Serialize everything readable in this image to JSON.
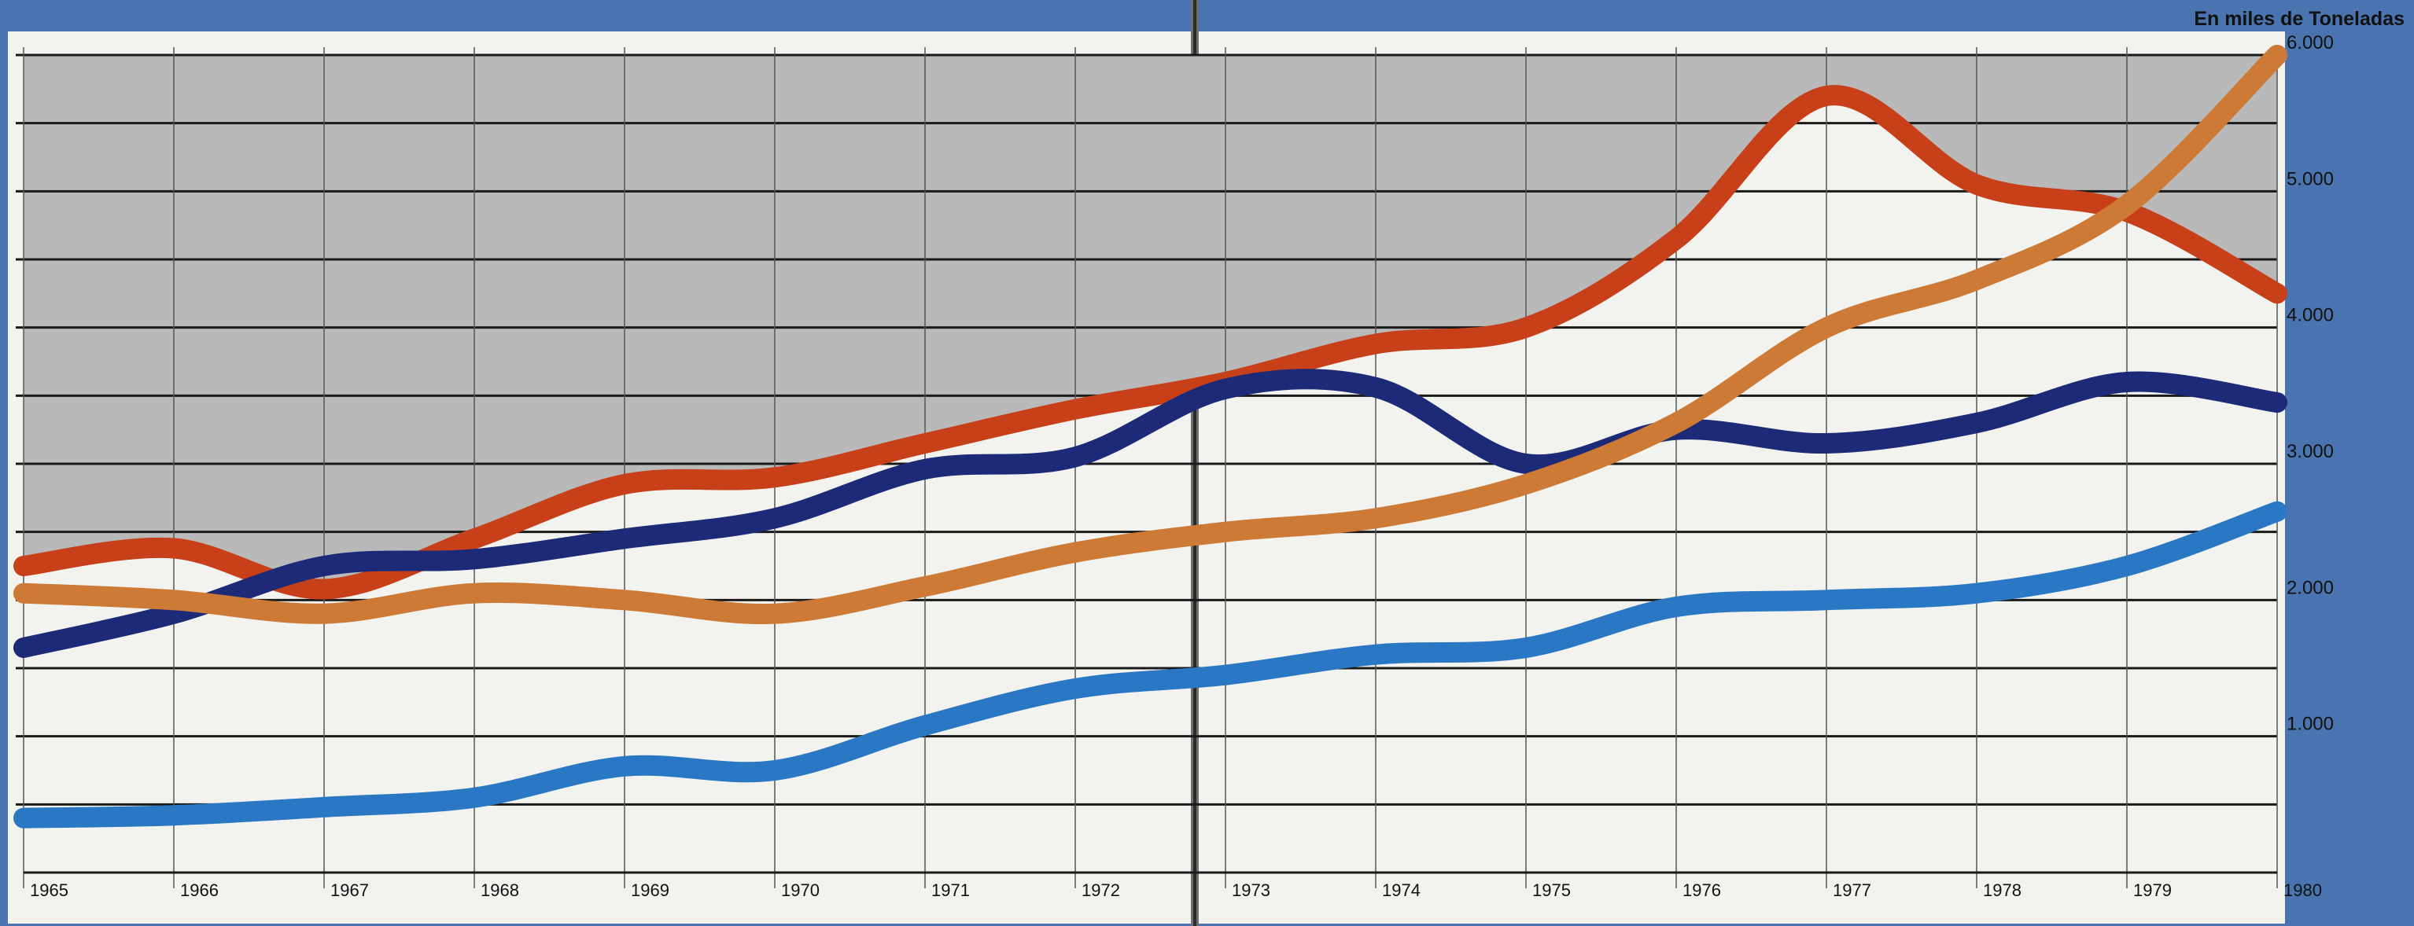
{
  "colors": {
    "background": "#4a74b0",
    "paper": "#f2f2ef",
    "shaded_band": "#b9b9b9",
    "grid_line": "#1a1a1a",
    "series_red": "#c8401a",
    "series_navy": "#1c2a78",
    "series_orange": "#cc7a35",
    "series_blue": "#2a78c4"
  },
  "chart_data": {
    "type": "line",
    "title": "",
    "unit_label": "En miles de Toneladas",
    "xlabel": "",
    "ylabel": "",
    "xlim": [
      1965,
      1980
    ],
    "ylim": [
      0,
      6000
    ],
    "x_ticks": [
      1965,
      1966,
      1967,
      1968,
      1969,
      1970,
      1971,
      1972,
      1973,
      1974,
      1975,
      1976,
      1977,
      1978,
      1979,
      1980
    ],
    "y_ticks": [
      1000,
      2000,
      3000,
      4000,
      5000,
      6000
    ],
    "y_tick_labels": [
      "1.000",
      "2.000",
      "3.000",
      "4.000",
      "5.000",
      "6.000"
    ],
    "grid": true,
    "legend": "none",
    "series": [
      {
        "color": "#c8401a",
        "x": [
          1965,
          1966,
          1967,
          1968,
          1969,
          1970,
          1971,
          1972,
          1973,
          1974,
          1975,
          1976,
          1977,
          1978,
          1979,
          1980
        ],
        "values": [
          2250,
          2380,
          2080,
          2450,
          2850,
          2900,
          3150,
          3400,
          3600,
          3880,
          4000,
          4650,
          5700,
          5050,
          4850,
          4250
        ]
      },
      {
        "color": "#1c2a78",
        "x": [
          1965,
          1966,
          1967,
          1968,
          1969,
          1970,
          1971,
          1972,
          1973,
          1974,
          1975,
          1976,
          1977,
          1978,
          1979,
          1980
        ],
        "values": [
          1650,
          1900,
          2250,
          2300,
          2450,
          2600,
          2960,
          3050,
          3550,
          3560,
          3000,
          3250,
          3150,
          3300,
          3600,
          3450
        ]
      },
      {
        "color": "#cc7a35",
        "x": [
          1965,
          1966,
          1967,
          1968,
          1969,
          1970,
          1971,
          1972,
          1973,
          1974,
          1975,
          1976,
          1977,
          1978,
          1979,
          1980
        ],
        "values": [
          2050,
          2000,
          1900,
          2050,
          2000,
          1900,
          2100,
          2350,
          2500,
          2600,
          2850,
          3300,
          4000,
          4350,
          4900,
          6000
        ]
      },
      {
        "color": "#2a78c4",
        "x": [
          1965,
          1966,
          1967,
          1968,
          1969,
          1970,
          1971,
          1972,
          1973,
          1974,
          1975,
          1976,
          1977,
          1978,
          1979,
          1980
        ],
        "values": [
          400,
          420,
          480,
          550,
          780,
          750,
          1080,
          1350,
          1450,
          1600,
          1650,
          1950,
          2000,
          2050,
          2250,
          2650
        ]
      }
    ]
  }
}
